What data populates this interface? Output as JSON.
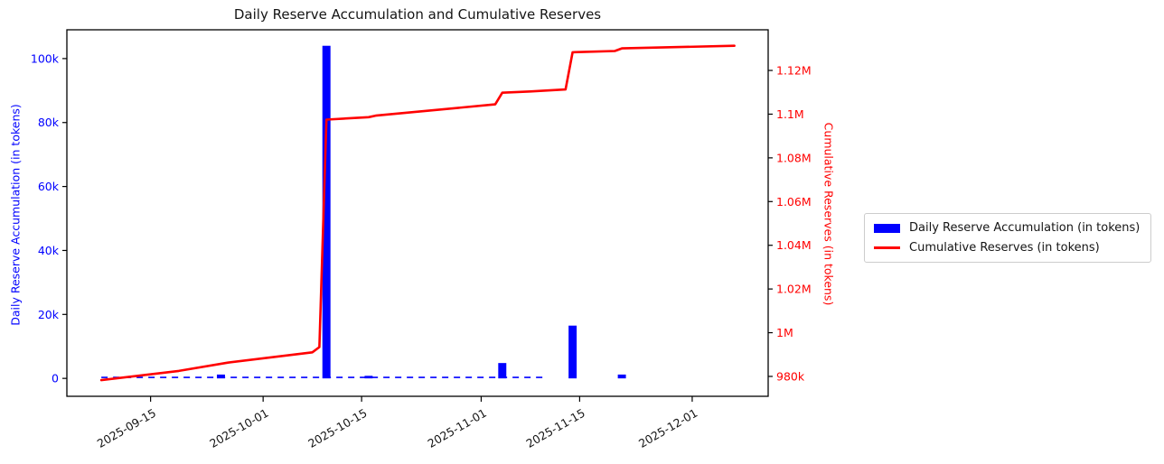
{
  "chart_data": {
    "type": "bar+line-dual-axis",
    "title": "Daily Reserve Accumulation and Cumulative Reserves",
    "grid": false,
    "legend_position": "right-of-plot",
    "colors": {
      "bar": "#0000ff",
      "line": "#ff0000",
      "left_tick_labels": "#0000ff",
      "right_tick_labels": "#ff0000",
      "spines": "#000000"
    },
    "x_axis": {
      "epoch": "2025-09-08",
      "lim_days": [
        -4.9,
        94.8
      ],
      "tick_rotation_deg": 30,
      "ticks": [
        {
          "label": "2025-09-15",
          "date": "2025-09-15"
        },
        {
          "label": "2025-10-01",
          "date": "2025-10-01"
        },
        {
          "label": "2025-10-15",
          "date": "2025-10-15"
        },
        {
          "label": "2025-11-01",
          "date": "2025-11-01"
        },
        {
          "label": "2025-11-15",
          "date": "2025-11-15"
        },
        {
          "label": "2025-12-01",
          "date": "2025-12-01"
        }
      ]
    },
    "left_axis": {
      "label": "Daily Reserve Accumulation (in tokens)",
      "lim": [
        -5600,
        109000
      ],
      "ticks": [
        {
          "label": "0",
          "value": 0
        },
        {
          "label": "20k",
          "value": 20000
        },
        {
          "label": "40k",
          "value": 40000
        },
        {
          "label": "60k",
          "value": 60000
        },
        {
          "label": "80k",
          "value": 80000
        },
        {
          "label": "100k",
          "value": 100000
        }
      ]
    },
    "right_axis": {
      "label": "Cumulative Reserves (in tokens)",
      "lim": [
        970900,
        1138600
      ],
      "ticks": [
        {
          "label": "980k",
          "value": 980000
        },
        {
          "label": "1M",
          "value": 1000000
        },
        {
          "label": "1.02M",
          "value": 1020000
        },
        {
          "label": "1.04M",
          "value": 1040000
        },
        {
          "label": "1.06M",
          "value": 1060000
        },
        {
          "label": "1.08M",
          "value": 1080000
        },
        {
          "label": "1.1M",
          "value": 1100000
        },
        {
          "label": "1.12M",
          "value": 1120000
        }
      ]
    },
    "bars": {
      "name": "Daily Reserve Accumulation (in tokens)",
      "width_days": 1.15,
      "data": [
        {
          "date": "2025-09-25",
          "value": 1200
        },
        {
          "date": "2025-10-10",
          "value": 104000
        },
        {
          "date": "2025-10-16",
          "value": 800
        },
        {
          "date": "2025-11-04",
          "value": 4800
        },
        {
          "date": "2025-11-14",
          "value": 16500
        },
        {
          "date": "2025-11-21",
          "value": 1200
        }
      ],
      "near_zero_daily": {
        "start": "2025-09-08",
        "end": "2025-11-10",
        "approx_daily_value": 300,
        "note": "tiny daily accumulation bars near zero render as a dashed blue baseline"
      }
    },
    "line": {
      "name": "Cumulative Reserves (in tokens)",
      "points": [
        {
          "date": "2025-09-08",
          "value": 978300
        },
        {
          "date": "2025-09-19",
          "value": 982500
        },
        {
          "date": "2025-09-26",
          "value": 986300
        },
        {
          "date": "2025-10-08",
          "value": 991000
        },
        {
          "date": "2025-10-09",
          "value": 993400
        },
        {
          "date": "2025-10-10",
          "value": 1097500
        },
        {
          "date": "2025-10-16",
          "value": 1098600
        },
        {
          "date": "2025-10-17",
          "value": 1099300
        },
        {
          "date": "2025-11-03",
          "value": 1104500
        },
        {
          "date": "2025-11-04",
          "value": 1109800
        },
        {
          "date": "2025-11-08",
          "value": 1110400
        },
        {
          "date": "2025-11-13",
          "value": 1111300
        },
        {
          "date": "2025-11-14",
          "value": 1128300
        },
        {
          "date": "2025-11-17",
          "value": 1128600
        },
        {
          "date": "2025-11-20",
          "value": 1128900
        },
        {
          "date": "2025-11-21",
          "value": 1130100
        },
        {
          "date": "2025-12-07",
          "value": 1131300
        }
      ]
    },
    "legend": {
      "items": [
        {
          "label": "Daily Reserve Accumulation (in tokens)",
          "marker": "bar",
          "color": "#0000ff"
        },
        {
          "label": "Cumulative Reserves (in tokens)",
          "marker": "line",
          "color": "#ff0000"
        }
      ]
    }
  }
}
